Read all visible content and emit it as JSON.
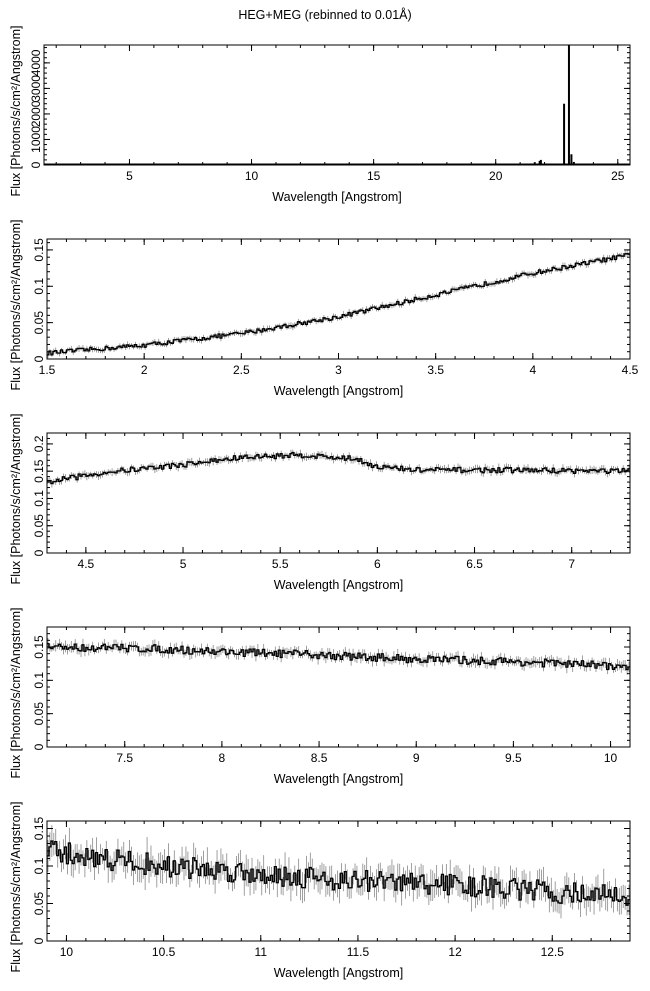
{
  "figure": {
    "title": "HEG+MEG (rebinned to 0.01Å)"
  },
  "chart_data": [
    {
      "type": "line",
      "xlabel": "Wavelength [Angstrom]",
      "ylabel": "Flux [Photons/s/cm²/Angstrom]",
      "xlim": [
        1.5,
        25.5
      ],
      "ylim": [
        0,
        4700
      ],
      "xticks": [
        5,
        10,
        15,
        20,
        25
      ],
      "yticks": [
        0,
        1000,
        2000,
        3000,
        4000
      ],
      "x_tick_labels": [
        "5",
        "10",
        "15",
        "20",
        "25"
      ],
      "y_tick_labels": [
        "0",
        "1000",
        "2000",
        "3000",
        "4000"
      ],
      "baseline": 20,
      "lines": [
        {
          "x": 21.45,
          "y": 60
        },
        {
          "x": 21.6,
          "y": 110
        },
        {
          "x": 21.8,
          "y": 160
        },
        {
          "x": 21.85,
          "y": 200
        },
        {
          "x": 22.8,
          "y": 2400
        },
        {
          "x": 23.0,
          "y": 4700
        },
        {
          "x": 23.1,
          "y": 420
        },
        {
          "x": 23.2,
          "y": 120
        }
      ]
    },
    {
      "type": "line",
      "xlabel": "Wavelength [Angstrom]",
      "ylabel": "Flux [Photons/s/cm²/Angstrom]",
      "xlim": [
        1.5,
        4.5
      ],
      "ylim": [
        0,
        0.165
      ],
      "xticks": [
        1.5,
        2,
        2.5,
        3,
        3.5,
        4,
        4.5
      ],
      "yticks": [
        0,
        0.05,
        0.1,
        0.15
      ],
      "x_tick_labels": [
        "1.5",
        "2",
        "2.5",
        "3",
        "3.5",
        "4",
        "4.5"
      ],
      "y_tick_labels": [
        "0",
        "0.05",
        "0.1",
        "0.15"
      ],
      "bin": 0.01,
      "curve": [
        [
          1.5,
          0.008
        ],
        [
          2.0,
          0.019
        ],
        [
          2.5,
          0.035
        ],
        [
          3.0,
          0.058
        ],
        [
          3.5,
          0.088
        ],
        [
          4.0,
          0.118
        ],
        [
          4.5,
          0.143
        ]
      ],
      "noise": 0.003
    },
    {
      "type": "line",
      "xlabel": "Wavelength [Angstrom]",
      "ylabel": "Flux [Photons/s/cm²/Angstrom]",
      "xlim": [
        4.3,
        7.3
      ],
      "ylim": [
        0,
        0.22
      ],
      "xticks": [
        4.5,
        5,
        5.5,
        6,
        6.5,
        7
      ],
      "yticks": [
        0,
        0.05,
        0.1,
        0.15,
        0.2
      ],
      "x_tick_labels": [
        "4.5",
        "5",
        "5.5",
        "6",
        "6.5",
        "7"
      ],
      "y_tick_labels": [
        "0",
        "0.05",
        "0.1",
        "0.15",
        "0.2"
      ],
      "bin": 0.01,
      "curve": [
        [
          4.3,
          0.13
        ],
        [
          4.6,
          0.148
        ],
        [
          5.0,
          0.162
        ],
        [
          5.3,
          0.175
        ],
        [
          5.6,
          0.18
        ],
        [
          5.9,
          0.172
        ],
        [
          6.0,
          0.158
        ],
        [
          6.2,
          0.152
        ],
        [
          6.7,
          0.152
        ],
        [
          7.0,
          0.151
        ],
        [
          7.3,
          0.15
        ]
      ],
      "noise": 0.005
    },
    {
      "type": "line",
      "xlabel": "Wavelength [Angstrom]",
      "ylabel": "Flux [Photons/s/cm²/Angstrom]",
      "xlim": [
        7.1,
        10.1
      ],
      "ylim": [
        0,
        0.18
      ],
      "xticks": [
        7.5,
        8,
        8.5,
        9,
        9.5,
        10
      ],
      "yticks": [
        0,
        0.05,
        0.1,
        0.15
      ],
      "x_tick_labels": [
        "7.5",
        "8",
        "8.5",
        "9",
        "9.5",
        "10"
      ],
      "y_tick_labels": [
        "0",
        "0.05",
        "0.1",
        "0.15"
      ],
      "bin": 0.01,
      "curve": [
        [
          7.1,
          0.15
        ],
        [
          7.6,
          0.148
        ],
        [
          8.0,
          0.143
        ],
        [
          8.5,
          0.138
        ],
        [
          9.0,
          0.132
        ],
        [
          9.5,
          0.128
        ],
        [
          10.0,
          0.122
        ],
        [
          10.1,
          0.118
        ]
      ],
      "noise": 0.006
    },
    {
      "type": "line",
      "xlabel": "Wavelength [Angstrom]",
      "ylabel": "Flux [Photons/s/cm²/Angstrom]",
      "xlim": [
        9.9,
        12.9
      ],
      "ylim": [
        0,
        0.16
      ],
      "xticks": [
        10,
        10.5,
        11,
        11.5,
        12,
        12.5
      ],
      "yticks": [
        0,
        0.05,
        0.1,
        0.15
      ],
      "x_tick_labels": [
        "10",
        "10.5",
        "11",
        "11.5",
        "12",
        "12.5"
      ],
      "y_tick_labels": [
        "0",
        "0.05",
        "0.1",
        "0.15"
      ],
      "bin": 0.01,
      "curve": [
        [
          9.9,
          0.12
        ],
        [
          10.5,
          0.1
        ],
        [
          11.0,
          0.09
        ],
        [
          11.5,
          0.08
        ],
        [
          12.0,
          0.075
        ],
        [
          12.5,
          0.065
        ],
        [
          12.9,
          0.06
        ]
      ],
      "noise": 0.015
    }
  ]
}
